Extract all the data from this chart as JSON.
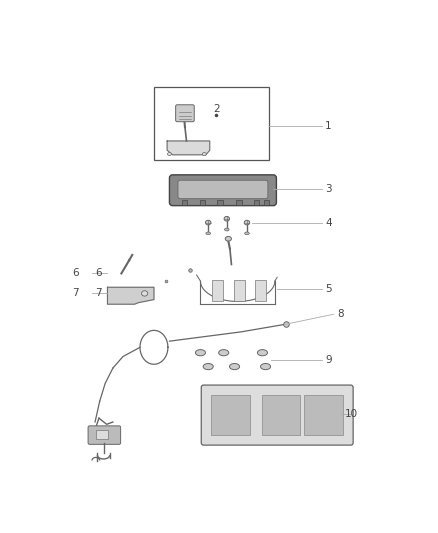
{
  "bg_color": "#ffffff",
  "line_color": "#aaaaaa",
  "dark_color": "#444444",
  "sketch_color": "#666666",
  "font_size": 7.5,
  "label_line_color": "#aaaaaa",
  "fig_w": 4.38,
  "fig_h": 5.33,
  "dpi": 100
}
